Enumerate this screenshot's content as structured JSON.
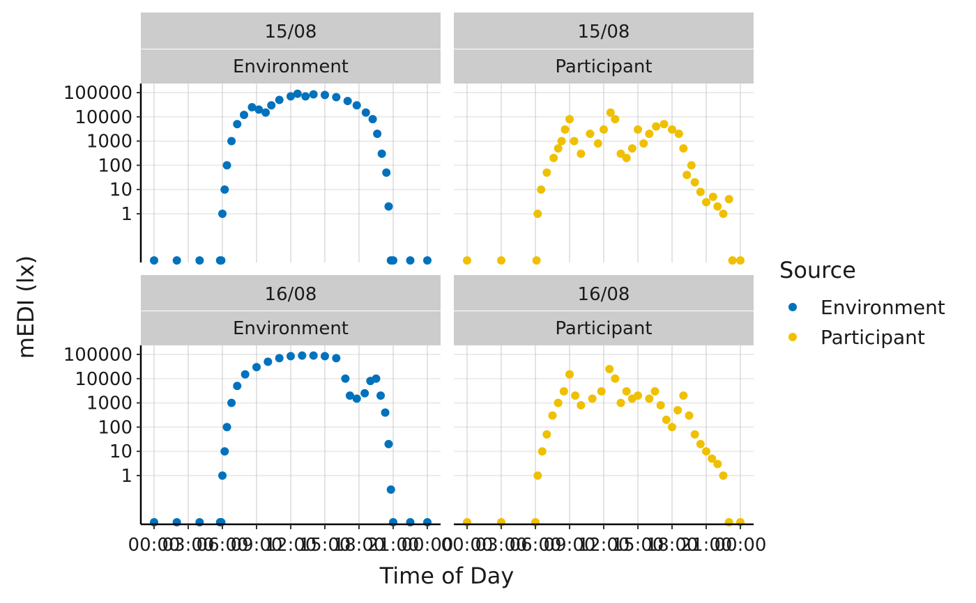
{
  "chart_data": {
    "type": "scatter",
    "facet_rows": [
      "15/08",
      "16/08"
    ],
    "facet_cols": [
      "Environment",
      "Participant"
    ],
    "xlabel": "Time of Day",
    "ylabel": "mEDI (lx)",
    "x_ticks": [
      "00:00",
      "03:00",
      "06:00",
      "09:00",
      "12:00",
      "15:00",
      "18:00",
      "21:00",
      "00:00"
    ],
    "x_range_hours": [
      0,
      24
    ],
    "y_scale": "log (symlog)",
    "y_ticks": [
      "1",
      "10",
      "100",
      "1000",
      "10000",
      "100000"
    ],
    "y_range": [
      0,
      100000
    ],
    "grid": true,
    "legend": {
      "title": "Source",
      "position": "right",
      "entries": [
        {
          "label": "Environment",
          "color": "#0072BD"
        },
        {
          "label": "Participant",
          "color": "#EFC000"
        }
      ]
    },
    "panels": [
      {
        "date": "15/08",
        "source": "Environment",
        "color": "#0072BD",
        "points": [
          [
            0,
            0
          ],
          [
            2,
            0
          ],
          [
            4,
            0
          ],
          [
            5.8,
            0
          ],
          [
            5.9,
            0.1
          ],
          [
            6.0,
            1
          ],
          [
            6.2,
            10
          ],
          [
            6.4,
            100
          ],
          [
            6.8,
            1000
          ],
          [
            7.3,
            5000
          ],
          [
            7.9,
            12000
          ],
          [
            8.6,
            25000
          ],
          [
            9.2,
            20000
          ],
          [
            9.8,
            15000
          ],
          [
            10.3,
            30000
          ],
          [
            11.0,
            50000
          ],
          [
            12.0,
            70000
          ],
          [
            12.6,
            90000
          ],
          [
            13.3,
            70000
          ],
          [
            14.0,
            85000
          ],
          [
            15.0,
            80000
          ],
          [
            16.0,
            65000
          ],
          [
            17.0,
            45000
          ],
          [
            17.8,
            30000
          ],
          [
            18.6,
            15000
          ],
          [
            19.2,
            8000
          ],
          [
            19.6,
            2000
          ],
          [
            20.0,
            300
          ],
          [
            20.4,
            50
          ],
          [
            20.6,
            2
          ],
          [
            20.8,
            0.1
          ],
          [
            21.0,
            0
          ],
          [
            22.5,
            0
          ],
          [
            24,
            0
          ]
        ]
      },
      {
        "date": "15/08",
        "source": "Participant",
        "color": "#EFC000",
        "points": [
          [
            0,
            0
          ],
          [
            3,
            0
          ],
          [
            6.1,
            0
          ],
          [
            6.2,
            1
          ],
          [
            6.5,
            10
          ],
          [
            7.0,
            50
          ],
          [
            7.6,
            200
          ],
          [
            8.0,
            500
          ],
          [
            8.3,
            1000
          ],
          [
            8.6,
            3000
          ],
          [
            9.0,
            8000
          ],
          [
            9.4,
            1000
          ],
          [
            10.0,
            300
          ],
          [
            10.8,
            2000
          ],
          [
            11.5,
            800
          ],
          [
            12.0,
            3000
          ],
          [
            12.6,
            15000
          ],
          [
            13.0,
            8000
          ],
          [
            13.5,
            300
          ],
          [
            14.0,
            200
          ],
          [
            14.5,
            500
          ],
          [
            15.0,
            3000
          ],
          [
            15.5,
            800
          ],
          [
            16.0,
            2000
          ],
          [
            16.6,
            4000
          ],
          [
            17.3,
            5000
          ],
          [
            18.0,
            3000
          ],
          [
            18.6,
            2000
          ],
          [
            19.0,
            500
          ],
          [
            19.3,
            40
          ],
          [
            19.7,
            100
          ],
          [
            20.0,
            20
          ],
          [
            20.5,
            8
          ],
          [
            21.0,
            3
          ],
          [
            21.6,
            5
          ],
          [
            22.0,
            2
          ],
          [
            22.5,
            1
          ],
          [
            23.0,
            4
          ],
          [
            23.3,
            0
          ],
          [
            24,
            0
          ]
        ]
      },
      {
        "date": "16/08",
        "source": "Environment",
        "color": "#0072BD",
        "points": [
          [
            0,
            0
          ],
          [
            2,
            0
          ],
          [
            4,
            0
          ],
          [
            5.8,
            0
          ],
          [
            5.9,
            0.1
          ],
          [
            6.0,
            1
          ],
          [
            6.2,
            10
          ],
          [
            6.4,
            100
          ],
          [
            6.8,
            1000
          ],
          [
            7.3,
            5000
          ],
          [
            8.0,
            15000
          ],
          [
            9.0,
            30000
          ],
          [
            10.0,
            50000
          ],
          [
            11.0,
            70000
          ],
          [
            12.0,
            85000
          ],
          [
            13.0,
            90000
          ],
          [
            14.0,
            90000
          ],
          [
            15.0,
            85000
          ],
          [
            16.0,
            70000
          ],
          [
            16.8,
            10000
          ],
          [
            17.2,
            2000
          ],
          [
            17.8,
            1500
          ],
          [
            18.5,
            2500
          ],
          [
            19.0,
            8000
          ],
          [
            19.5,
            10000
          ],
          [
            19.9,
            2000
          ],
          [
            20.3,
            400
          ],
          [
            20.6,
            20
          ],
          [
            20.8,
            0.5
          ],
          [
            21.0,
            0
          ],
          [
            22.5,
            0
          ],
          [
            24,
            0
          ]
        ]
      },
      {
        "date": "16/08",
        "source": "Participant",
        "color": "#EFC000",
        "points": [
          [
            0,
            0
          ],
          [
            3,
            0
          ],
          [
            6.0,
            0
          ],
          [
            6.2,
            1
          ],
          [
            6.6,
            10
          ],
          [
            7.0,
            50
          ],
          [
            7.5,
            300
          ],
          [
            8.0,
            1000
          ],
          [
            8.5,
            3000
          ],
          [
            9.0,
            15000
          ],
          [
            9.5,
            2000
          ],
          [
            10.0,
            800
          ],
          [
            11.0,
            1500
          ],
          [
            11.8,
            3000
          ],
          [
            12.5,
            25000
          ],
          [
            13.0,
            10000
          ],
          [
            13.5,
            1000
          ],
          [
            14.0,
            3000
          ],
          [
            14.5,
            1500
          ],
          [
            15.0,
            2000
          ],
          [
            16.0,
            1500
          ],
          [
            16.5,
            3000
          ],
          [
            17.0,
            800
          ],
          [
            17.5,
            200
          ],
          [
            18.0,
            100
          ],
          [
            18.5,
            500
          ],
          [
            19.0,
            2000
          ],
          [
            19.5,
            300
          ],
          [
            20.0,
            50
          ],
          [
            20.5,
            20
          ],
          [
            21.0,
            10
          ],
          [
            21.5,
            5
          ],
          [
            22.0,
            3
          ],
          [
            22.5,
            1
          ],
          [
            23.0,
            0
          ],
          [
            24,
            0
          ]
        ]
      }
    ]
  }
}
